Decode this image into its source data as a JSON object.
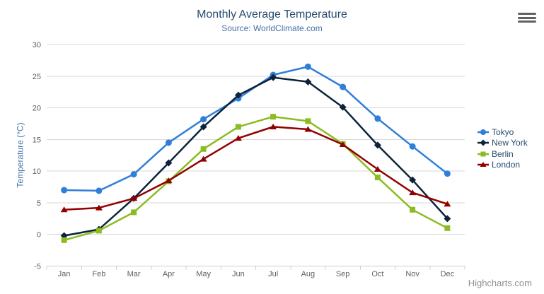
{
  "header": {
    "title": "Monthly Average Temperature",
    "subtitle": "Source: WorldClimate.com"
  },
  "toolbar": {
    "export_menu_icon": "hamburger-icon"
  },
  "credits": {
    "label": "Highcharts.com"
  },
  "colors": {
    "title": "#274b6d",
    "subtitle": "#4572A7",
    "axis_title": "#4572A7",
    "axis_labels": "#606060",
    "grid_line": "#D8D8D8",
    "axis_line": "#C0D0E0",
    "legend_text": "#274b6d",
    "credits_text": "#909090",
    "menu_icon": "#616161"
  },
  "chart_data": {
    "type": "line",
    "title": "Monthly Average Temperature",
    "subtitle": "Source: WorldClimate.com",
    "xlabel": "",
    "ylabel": "Temperature (°C)",
    "categories": [
      "Jan",
      "Feb",
      "Mar",
      "Apr",
      "May",
      "Jun",
      "Jul",
      "Aug",
      "Sep",
      "Oct",
      "Nov",
      "Dec"
    ],
    "ylim": [
      -5,
      30
    ],
    "ytick_interval": 5,
    "yticks": [
      -5,
      0,
      5,
      10,
      15,
      20,
      25,
      30
    ],
    "grid": true,
    "legend_position": "right-middle-vertical",
    "series": [
      {
        "name": "Tokyo",
        "color": "#2f7ed8",
        "marker": "circle",
        "values": [
          7.0,
          6.9,
          9.5,
          14.5,
          18.2,
          21.5,
          25.2,
          26.5,
          23.3,
          18.3,
          13.9,
          9.6
        ]
      },
      {
        "name": "New York",
        "color": "#0d233a",
        "marker": "diamond",
        "values": [
          -0.2,
          0.8,
          5.7,
          11.3,
          17.0,
          22.0,
          24.8,
          24.1,
          20.1,
          14.1,
          8.6,
          2.5
        ]
      },
      {
        "name": "Berlin",
        "color": "#8bbc21",
        "marker": "square",
        "values": [
          -0.9,
          0.6,
          3.5,
          8.4,
          13.5,
          17.0,
          18.6,
          17.9,
          14.3,
          9.0,
          3.9,
          1.0
        ]
      },
      {
        "name": "London",
        "color": "#910000",
        "marker": "triangle",
        "values": [
          3.9,
          4.2,
          5.7,
          8.5,
          11.9,
          15.2,
          17.0,
          16.6,
          14.2,
          10.3,
          6.6,
          4.8
        ]
      }
    ]
  }
}
